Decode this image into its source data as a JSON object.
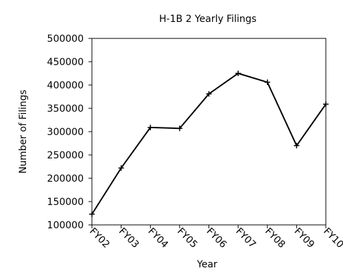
{
  "chart_data": {
    "type": "line",
    "title": "H-1B 2 Yearly Filings",
    "xlabel": "Year",
    "ylabel": "Number of Filings",
    "categories": [
      "FY02",
      "FY03",
      "FY04",
      "FY05",
      "FY06",
      "FY07",
      "FY08",
      "FY09",
      "FY10"
    ],
    "series": [
      {
        "values": [
          123000,
          222000,
          309000,
          307000,
          381000,
          425000,
          406000,
          270000,
          359000
        ]
      }
    ],
    "ylim": [
      100000,
      500000
    ],
    "yticks": [
      "100000",
      "150000",
      "200000",
      "250000",
      "300000",
      "350000",
      "400000",
      "450000",
      "500000"
    ],
    "grid": false,
    "legend": "none",
    "colors": {
      "line": "#000000",
      "axes": "#000000",
      "background": "#ffffff"
    },
    "marker": "plus"
  }
}
